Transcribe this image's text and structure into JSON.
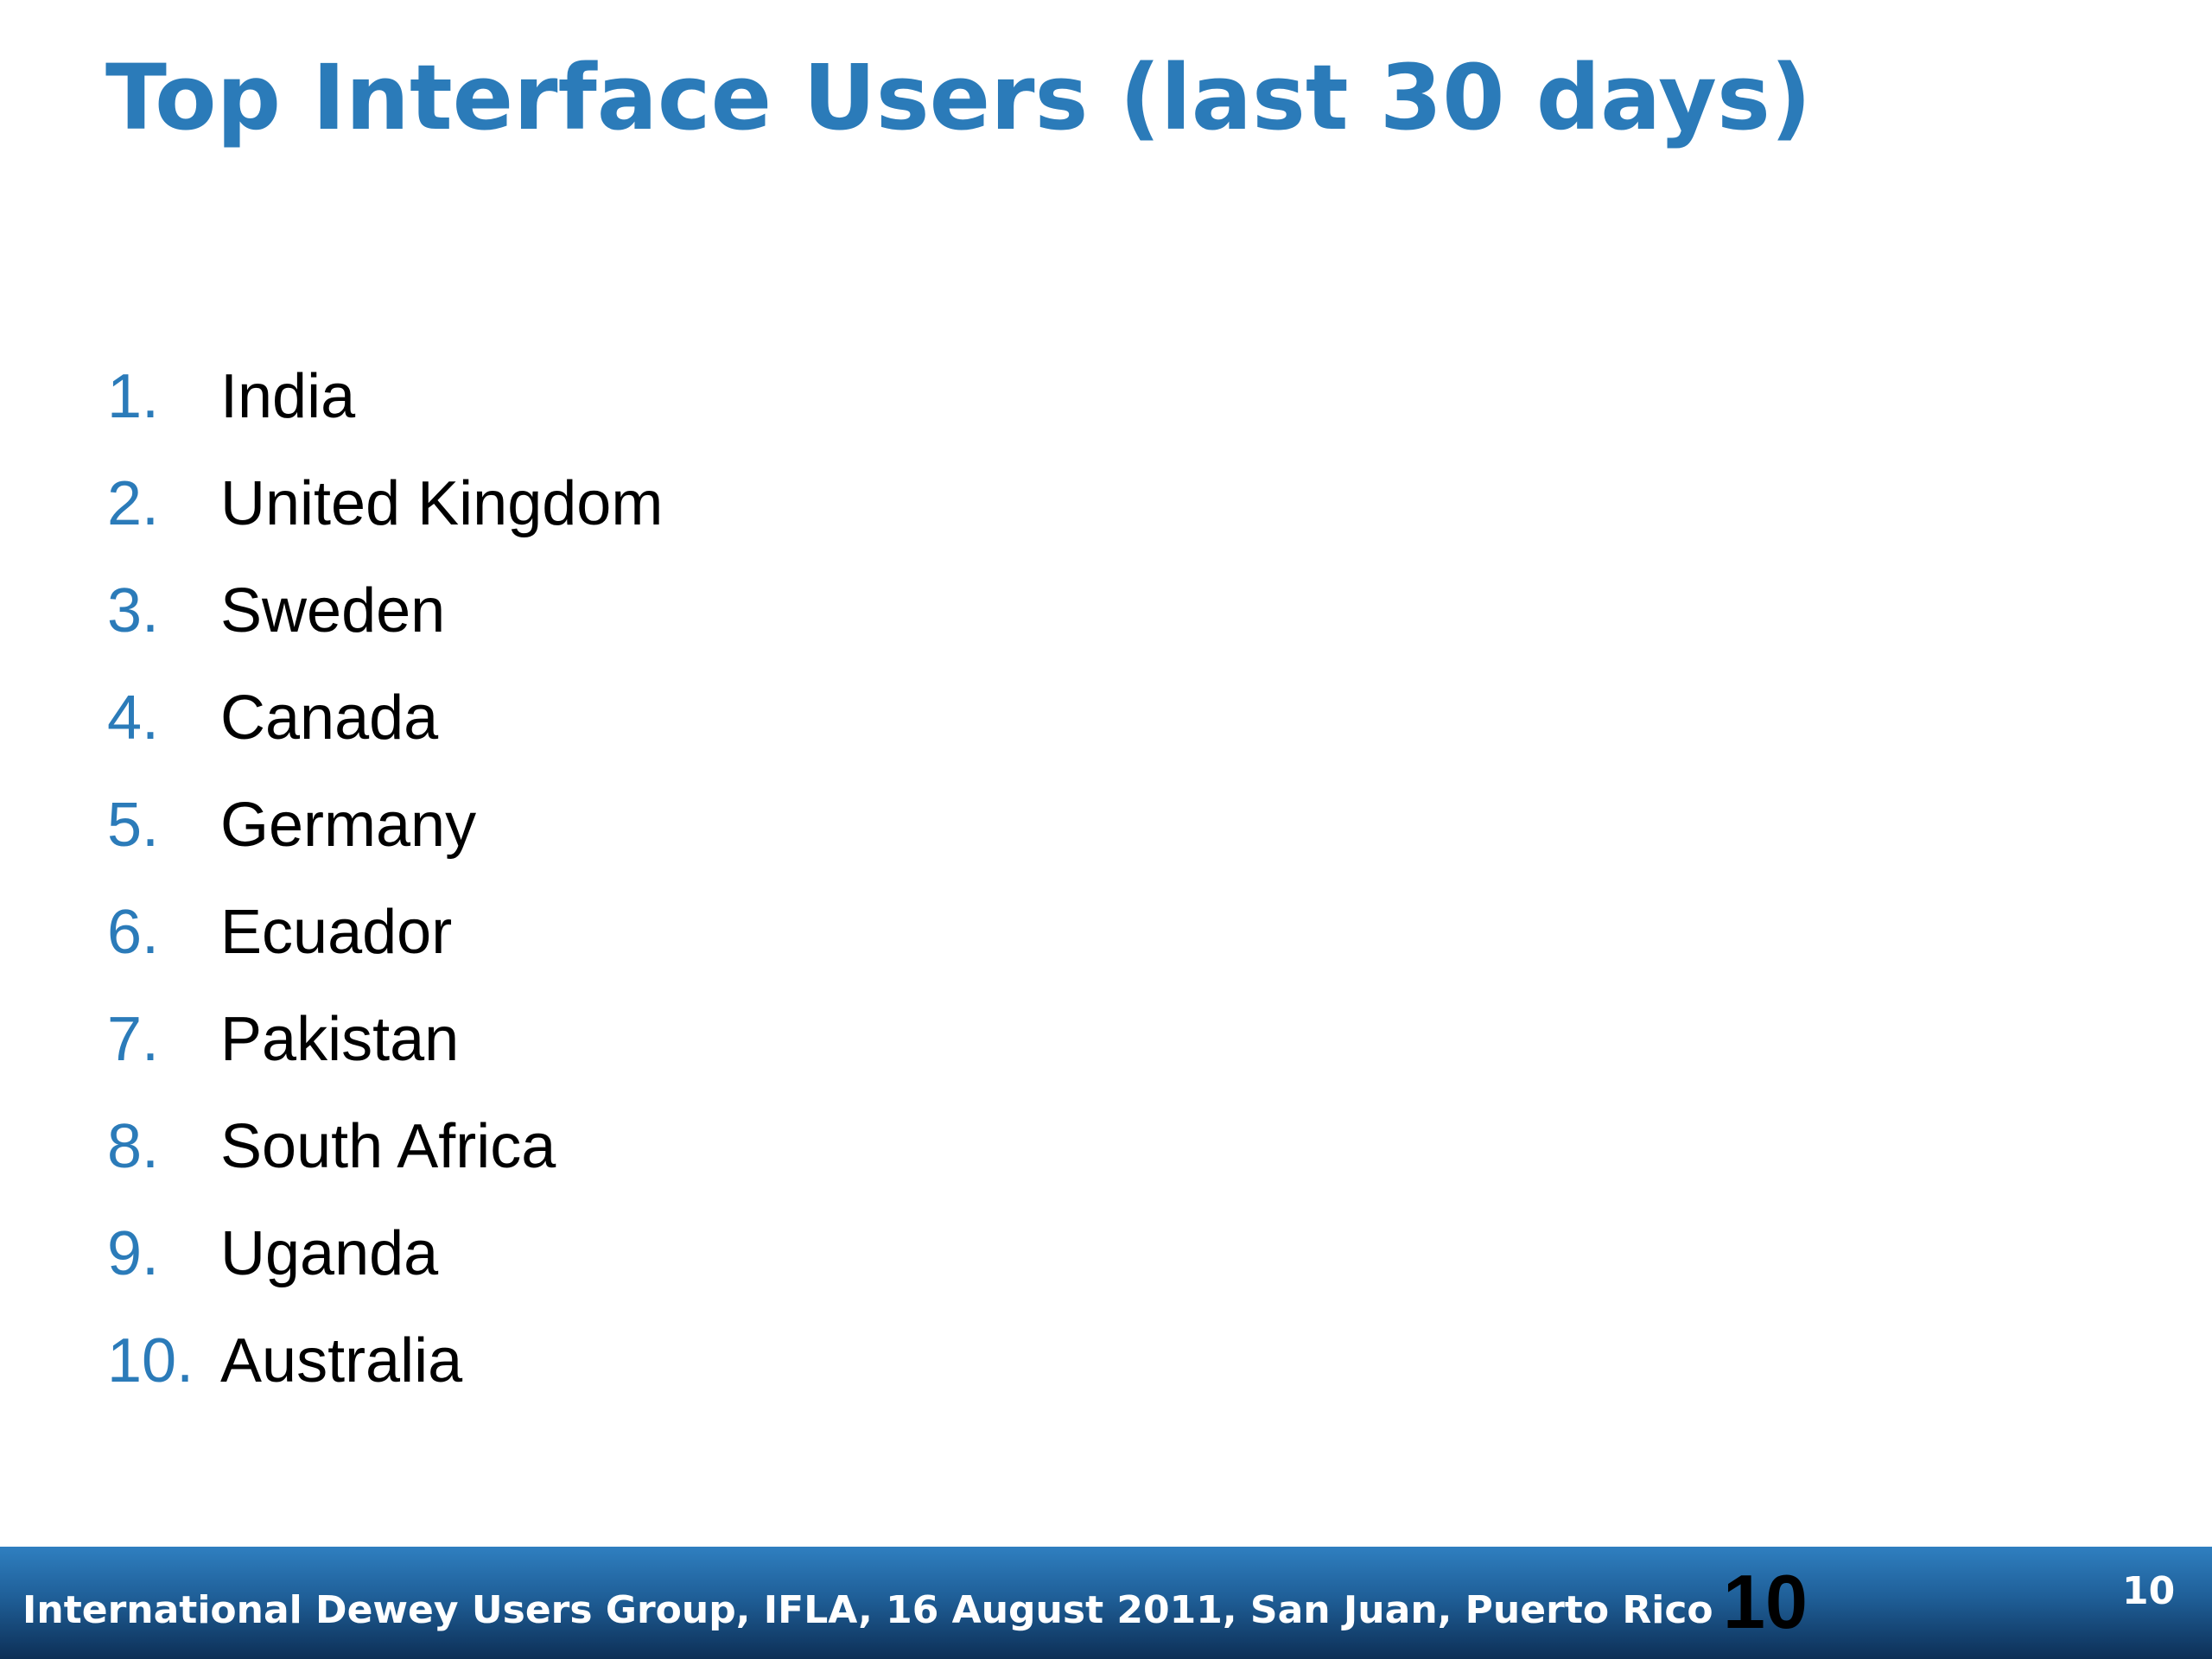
{
  "slide": {
    "title": "Top Interface Users (last 30 days)",
    "items": [
      {
        "number": "1.",
        "label": "India"
      },
      {
        "number": "2.",
        "label": "United Kingdom"
      },
      {
        "number": "3.",
        "label": "Sweden"
      },
      {
        "number": "4.",
        "label": "Canada"
      },
      {
        "number": "5.",
        "label": "Germany"
      },
      {
        "number": "6.",
        "label": "Ecuador"
      },
      {
        "number": "7.",
        "label": "Pakistan"
      },
      {
        "number": "8.",
        "label": "South Africa"
      },
      {
        "number": "9.",
        "label": "Uganda"
      },
      {
        "number": "10.",
        "label": "Australia"
      }
    ]
  },
  "footer": {
    "text": "International Dewey Users Group, IFLA, 16 August 2011, San Juan, Puerto Rico",
    "page_number_large": "10",
    "page_number_small": "10"
  },
  "colors": {
    "accent": "#2b7bb9",
    "footer_top": "#2f7fc0",
    "footer_bottom": "#0d2f56",
    "text": "#000000"
  }
}
